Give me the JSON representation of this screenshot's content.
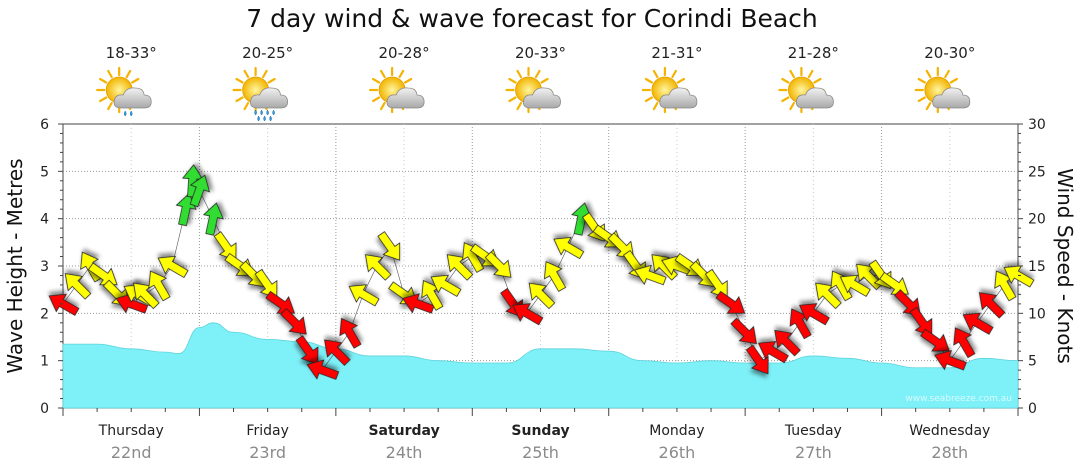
{
  "chart_data": {
    "type": "area",
    "title": "7 day wind & wave forecast for Corindi Beach",
    "ylabel_left": "Wave Height - Metres",
    "ylabel_right": "Wind Speed - Knots",
    "ylim_left": [
      0,
      6
    ],
    "ylim_right": [
      0,
      30
    ],
    "yticks_left": [
      "0",
      "1",
      "2",
      "3",
      "4",
      "5",
      "6"
    ],
    "yticks_right": [
      "0",
      "5",
      "10",
      "15",
      "20",
      "25",
      "30"
    ],
    "days": [
      {
        "name": "Thursday",
        "date": "22nd",
        "temp": "18-33°",
        "weather": "showers",
        "bold": false
      },
      {
        "name": "Friday",
        "date": "23rd",
        "temp": "20-25°",
        "weather": "rain",
        "bold": false
      },
      {
        "name": "Saturday",
        "date": "24th",
        "temp": "20-28°",
        "weather": "partly-cloudy",
        "bold": true
      },
      {
        "name": "Sunday",
        "date": "25th",
        "temp": "20-33°",
        "weather": "partly-cloudy",
        "bold": true
      },
      {
        "name": "Monday",
        "date": "26th",
        "temp": "21-31°",
        "weather": "partly-cloudy",
        "bold": false
      },
      {
        "name": "Tuesday",
        "date": "27th",
        "temp": "21-28°",
        "weather": "partly-cloudy",
        "bold": false
      },
      {
        "name": "Wednesday",
        "date": "28th",
        "temp": "20-30°",
        "weather": "partly-cloudy",
        "bold": false
      }
    ],
    "wave_series": {
      "name": "Wave Height (m)",
      "x_days": [
        0,
        0.25,
        0.5,
        0.75,
        0.85,
        1.0,
        1.1,
        1.25,
        1.5,
        1.75,
        2.0,
        2.25,
        2.5,
        2.75,
        3.0,
        3.25,
        3.5,
        3.75,
        4.0,
        4.25,
        4.5,
        4.75,
        5.0,
        5.25,
        5.5,
        5.75,
        6.0,
        6.25,
        6.5,
        6.75,
        7.0
      ],
      "values": [
        1.35,
        1.35,
        1.25,
        1.18,
        1.15,
        1.7,
        1.8,
        1.6,
        1.45,
        1.4,
        1.25,
        1.1,
        1.1,
        1.0,
        0.95,
        0.95,
        1.25,
        1.25,
        1.2,
        1.0,
        0.95,
        1.0,
        0.95,
        0.95,
        1.1,
        1.05,
        0.95,
        0.85,
        0.85,
        1.05,
        1.0
      ]
    },
    "wind_series": {
      "name": "Wind Speed (knots)",
      "x_days": [
        0,
        0.1,
        0.2,
        0.3,
        0.4,
        0.5,
        0.55,
        0.6,
        0.7,
        0.8,
        0.9,
        0.95,
        1.0,
        1.1,
        1.2,
        1.3,
        1.4,
        1.5,
        1.6,
        1.7,
        1.8,
        1.9,
        2.0,
        2.1,
        2.2,
        2.3,
        2.4,
        2.5,
        2.6,
        2.7,
        2.8,
        2.9,
        3.0,
        3.1,
        3.2,
        3.3,
        3.4,
        3.5,
        3.6,
        3.7,
        3.8,
        3.9,
        4.0,
        4.1,
        4.2,
        4.3,
        4.4,
        4.5,
        4.6,
        4.7,
        4.8,
        4.9,
        5.0,
        5.1,
        5.2,
        5.3,
        5.4,
        5.5,
        5.6,
        5.7,
        5.8,
        5.9,
        6.0,
        6.1,
        6.2,
        6.3,
        6.4,
        6.5,
        6.6,
        6.7,
        6.8,
        6.9,
        7.0
      ],
      "values": [
        11,
        13,
        15,
        14,
        12,
        11,
        12,
        12,
        13,
        15,
        21,
        24,
        23,
        20,
        17,
        15,
        14,
        13,
        11,
        9,
        6,
        4,
        6,
        8,
        12,
        15,
        17,
        12,
        11,
        12,
        13,
        15,
        16,
        16,
        15,
        11,
        10,
        12,
        14,
        17,
        20,
        19,
        18,
        17,
        15,
        14,
        15,
        15,
        15,
        14,
        13,
        11,
        8,
        5,
        6,
        7,
        9,
        10,
        12,
        13,
        13,
        14,
        14,
        13,
        11,
        9,
        7,
        5,
        7,
        9,
        11,
        13,
        14
      ]
    },
    "wind_colors": {
      "light": "#ff0000",
      "moderate": "#ffff00",
      "strong": "#33dd33",
      "wave_fill": "#7ef0f7"
    },
    "watermark": "www.seabreeze.com.au"
  }
}
